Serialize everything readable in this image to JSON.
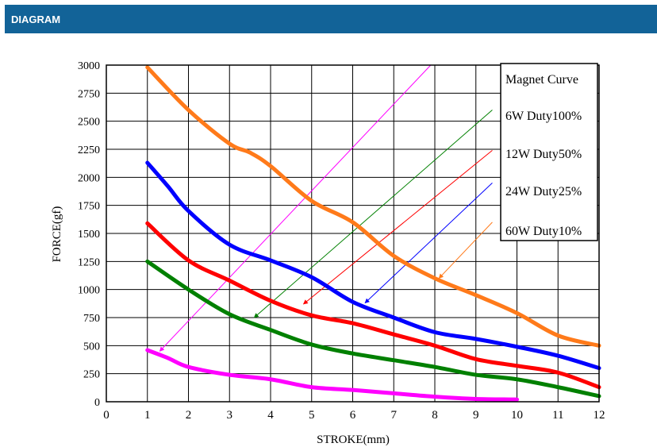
{
  "header": {
    "title": "DIAGRAM"
  },
  "chart_data": {
    "type": "line",
    "title": "",
    "xlabel": "STROKE(mm)",
    "ylabel": "FORCE(gf)",
    "xlim": [
      0,
      12
    ],
    "ylim": [
      0,
      3000
    ],
    "xticks": [
      0,
      1,
      2,
      3,
      4,
      5,
      6,
      7,
      8,
      9,
      10,
      11,
      12
    ],
    "yticks": [
      0,
      250,
      500,
      750,
      1000,
      1250,
      1500,
      1750,
      2000,
      2250,
      2500,
      2750,
      3000
    ],
    "grid": true,
    "legend_title": "Magnet Curve",
    "legend_position": "top-right",
    "series": [
      {
        "name": "6W Duty100%",
        "color": "#ff00ff",
        "x": [
          1,
          1.5,
          2,
          3,
          4,
          5,
          6,
          7,
          8,
          9,
          10
        ],
        "y": [
          460,
          390,
          310,
          240,
          200,
          130,
          105,
          75,
          45,
          25,
          20
        ],
        "arrow_from": [
          7.9,
          3000
        ],
        "arrow_to": [
          1.3,
          450
        ]
      },
      {
        "name": "12W Duty50%",
        "color": "#008000",
        "x": [
          1,
          2,
          3,
          4,
          5,
          6,
          7,
          8,
          9,
          10,
          11,
          12
        ],
        "y": [
          1250,
          1000,
          780,
          640,
          510,
          430,
          370,
          310,
          240,
          200,
          130,
          50
        ],
        "arrow_from": [
          9.4,
          2600
        ],
        "arrow_to": [
          3.6,
          750
        ]
      },
      {
        "name": "24W Duty25%",
        "color": "#ff0000",
        "x": [
          1,
          2,
          3,
          4,
          5,
          6,
          7,
          8,
          9,
          10,
          11,
          12
        ],
        "y": [
          1590,
          1260,
          1080,
          900,
          770,
          700,
          600,
          500,
          380,
          320,
          260,
          130
        ],
        "arrow_from": [
          9.4,
          2240
        ],
        "arrow_to": [
          4.8,
          870
        ]
      },
      {
        "name": "60W Duty10%",
        "color": "#0000ff",
        "x": [
          1,
          1.5,
          2,
          3,
          4,
          5,
          6,
          7,
          8,
          9,
          10,
          11,
          12
        ],
        "y": [
          2130,
          1920,
          1700,
          1400,
          1260,
          1110,
          890,
          750,
          620,
          560,
          490,
          410,
          300
        ],
        "arrow_from": [
          9.4,
          1950
        ],
        "arrow_to": [
          6.3,
          880
        ]
      },
      {
        "name": "",
        "color": "#ff7a1a",
        "x": [
          1,
          2,
          3,
          3.5,
          4,
          5,
          6,
          7,
          8,
          9,
          10,
          11,
          12
        ],
        "y": [
          2980,
          2600,
          2300,
          2220,
          2100,
          1790,
          1600,
          1300,
          1100,
          950,
          790,
          590,
          500
        ],
        "arrow_from": [
          9.4,
          1600
        ],
        "arrow_to": [
          8.1,
          1100
        ]
      }
    ]
  }
}
